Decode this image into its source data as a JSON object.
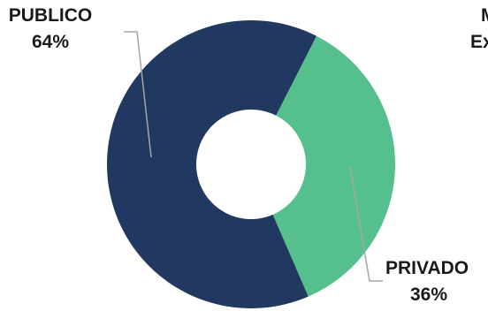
{
  "chart_data": {
    "type": "pie",
    "categories": [
      "PUBLICO",
      "PRIVADO"
    ],
    "values": [
      64,
      36
    ],
    "value_labels": [
      "64%",
      "36%"
    ],
    "donut": true,
    "colors": [
      "#213860",
      "#55c08d"
    ],
    "leader_line_color": "#a6a6a6",
    "title": ""
  },
  "clipped_text": {
    "line1": "M",
    "line2": "Ex"
  }
}
